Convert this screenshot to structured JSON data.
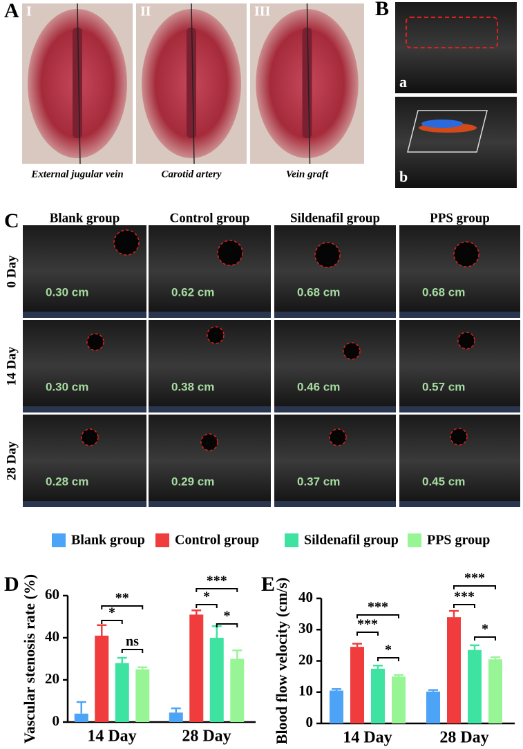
{
  "panels": {
    "A": {
      "label": "A",
      "photos": [
        {
          "numeral": "I",
          "caption": "External jugular vein"
        },
        {
          "numeral": "II",
          "caption": "Carotid artery"
        },
        {
          "numeral": "III",
          "caption": "Vein graft"
        }
      ]
    },
    "B": {
      "label": "B",
      "images": [
        "a",
        "b"
      ]
    },
    "C": {
      "label": "C",
      "columns": [
        "Blank group",
        "Control group",
        "Sildenafil group",
        "PPS group"
      ],
      "rows": [
        "0 Day",
        "14 Day",
        "28 Day"
      ],
      "measurements": [
        [
          "0.30 cm",
          "0.62 cm",
          "0.68 cm",
          "0.68 cm"
        ],
        [
          "0.30 cm",
          "0.38 cm",
          "0.46 cm",
          "0.57 cm"
        ],
        [
          "0.28 cm",
          "0.29 cm",
          "0.37 cm",
          "0.45 cm"
        ]
      ]
    },
    "D": {
      "label": "D"
    },
    "E": {
      "label": "E"
    }
  },
  "chart_data": [
    {
      "type": "bar",
      "y_label": "Vascular stenosis rate (%)",
      "categories": [
        "14 Day",
        "28 Day"
      ],
      "series": [
        {
          "name": "Blank group",
          "color": "#4da3f5",
          "values": [
            4,
            4.5
          ],
          "errors": [
            5.5,
            2
          ]
        },
        {
          "name": "Control group",
          "color": "#f03c3c",
          "values": [
            41,
            51
          ],
          "errors": [
            5,
            2
          ]
        },
        {
          "name": "Sildenafil group",
          "color": "#3ee3a2",
          "values": [
            28,
            40
          ],
          "errors": [
            2.5,
            5.5
          ]
        },
        {
          "name": "PPS group",
          "color": "#97f596",
          "values": [
            25,
            30
          ],
          "errors": [
            1,
            4
          ]
        }
      ],
      "ylim": [
        0,
        60
      ],
      "yticks": [
        0,
        20,
        40,
        60
      ],
      "annotations": [
        "**",
        "*",
        "ns",
        "***",
        "*",
        "*"
      ]
    },
    {
      "type": "bar",
      "y_label": "Blood flow velocity (cm/s)",
      "categories": [
        "14 Day",
        "28 Day"
      ],
      "series": [
        {
          "color": "#4da3f5",
          "values": [
            10.5,
            10.2
          ],
          "errors": [
            0.5,
            0.5
          ]
        },
        {
          "color": "#f03c3c",
          "values": [
            24.5,
            34
          ],
          "errors": [
            1,
            2
          ]
        },
        {
          "color": "#3ee3a2",
          "values": [
            17.5,
            23.5
          ],
          "errors": [
            1,
            1.5
          ]
        },
        {
          "color": "#97f596",
          "values": [
            15,
            20.5
          ],
          "errors": [
            0.5,
            0.7
          ]
        }
      ],
      "ylim": [
        0,
        40
      ],
      "yticks": [
        0,
        10,
        20,
        30,
        40
      ],
      "annotations": [
        "***",
        "***",
        "*",
        "***",
        "***",
        "*"
      ]
    }
  ]
}
